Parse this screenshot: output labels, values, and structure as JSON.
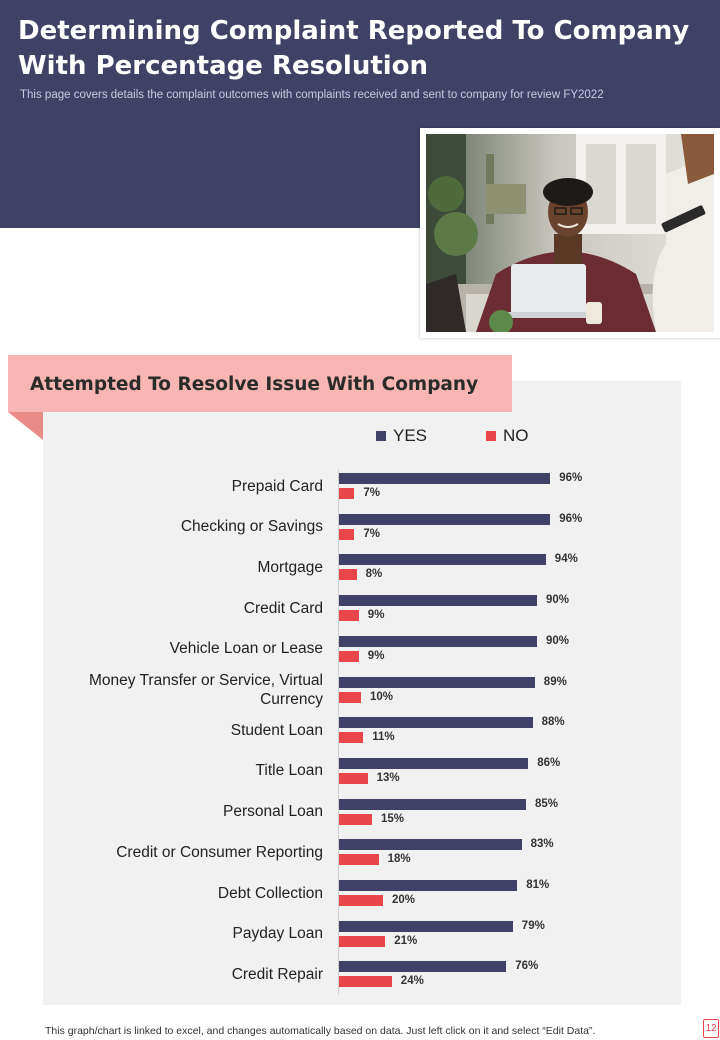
{
  "header": {
    "title": "Determining Complaint Reported To Company With Percentage Resolution",
    "subtitle": "This page covers details the complaint outcomes with complaints received and sent to company for review FY2022"
  },
  "chart_data": {
    "type": "bar",
    "orientation": "horizontal",
    "title": "Attempted To Resolve Issue With Company",
    "categories": [
      "Prepaid Card",
      "Checking or Savings",
      "Mortgage",
      "Credit Card",
      "Vehicle Loan or Lease",
      "Money Transfer or Service, Virtual Currency",
      "Student Loan",
      "Title Loan",
      "Personal Loan",
      "Credit or Consumer Reporting",
      "Debt Collection",
      "Payday Loan",
      "Credit Repair"
    ],
    "series": [
      {
        "name": "YES",
        "color": "#3f4266",
        "values": [
          96,
          96,
          94,
          90,
          90,
          89,
          88,
          86,
          85,
          83,
          81,
          79,
          76
        ]
      },
      {
        "name": "NO",
        "color": "#e8464a",
        "values": [
          7,
          7,
          8,
          9,
          9,
          10,
          11,
          13,
          15,
          18,
          20,
          21,
          24
        ]
      }
    ],
    "value_suffix": "%",
    "xlim": [
      0,
      100
    ],
    "legend_position": "top",
    "grid": false
  },
  "footer": {
    "note": "This graph/chart is linked to excel, and changes automatically based on data. Just left click on it and select “Edit Data”.",
    "page_number": "12"
  }
}
